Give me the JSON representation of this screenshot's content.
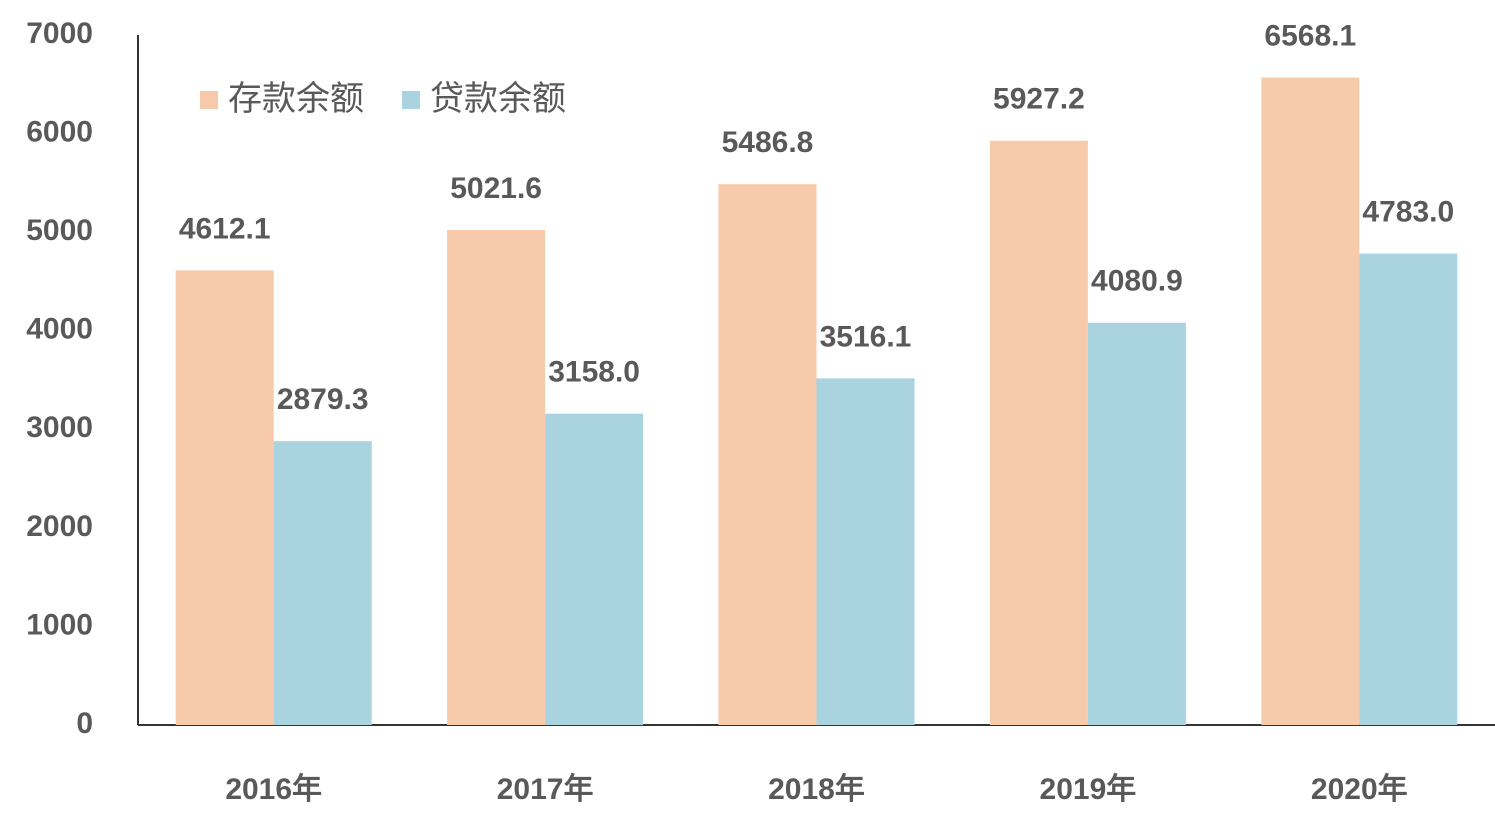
{
  "chart_data": {
    "type": "bar",
    "categories": [
      "2016年",
      "2017年",
      "2018年",
      "2019年",
      "2020年"
    ],
    "series": [
      {
        "name": "存款余额",
        "color": "#f7caac",
        "values": [
          4612.1,
          5021.6,
          5486.8,
          5927.2,
          6568.1
        ],
        "value_labels": [
          "4612.1",
          "5021.6",
          "5486.8",
          "5927.2",
          "6568.1"
        ]
      },
      {
        "name": "贷款余额",
        "color": "#a9d3df",
        "values": [
          2879.3,
          3158.0,
          3516.1,
          4080.9,
          4783.0
        ],
        "value_labels": [
          "2879.3",
          "3158.0",
          "3516.1",
          "4080.9",
          "4783.0"
        ]
      }
    ],
    "ylim": [
      0,
      7000
    ],
    "yticks": [
      0,
      1000,
      2000,
      3000,
      4000,
      5000,
      6000,
      7000
    ],
    "grid": false,
    "legend": "top-left"
  }
}
